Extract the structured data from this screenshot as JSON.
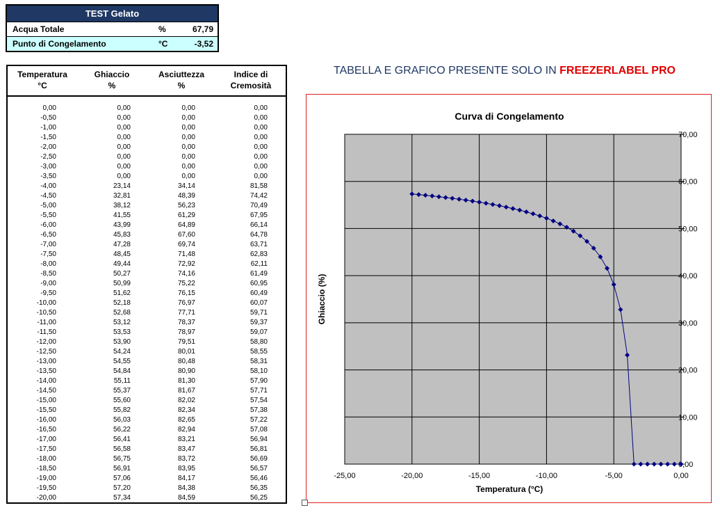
{
  "info": {
    "title": "TEST Gelato",
    "rows": [
      {
        "label": "Acqua Totale",
        "unit": "%",
        "value": "67,79"
      },
      {
        "label": "Punto di Congelamento",
        "unit": "°C",
        "value": "-3,52"
      }
    ]
  },
  "table": {
    "headers": [
      {
        "line1": "Temperatura",
        "line2": "°C"
      },
      {
        "line1": "Ghiaccio",
        "line2": "%"
      },
      {
        "line1": "Asciuttezza",
        "line2": "%"
      },
      {
        "line1": "Indice di",
        "line2": "Cremosità"
      }
    ],
    "rows": [
      [
        "0,00",
        "0,00",
        "0,00",
        "0,00"
      ],
      [
        "-0,50",
        "0,00",
        "0,00",
        "0,00"
      ],
      [
        "-1,00",
        "0,00",
        "0,00",
        "0,00"
      ],
      [
        "-1,50",
        "0,00",
        "0,00",
        "0,00"
      ],
      [
        "-2,00",
        "0,00",
        "0,00",
        "0,00"
      ],
      [
        "-2,50",
        "0,00",
        "0,00",
        "0,00"
      ],
      [
        "-3,00",
        "0,00",
        "0,00",
        "0,00"
      ],
      [
        "-3,50",
        "0,00",
        "0,00",
        "0,00"
      ],
      [
        "-4,00",
        "23,14",
        "34,14",
        "81,58"
      ],
      [
        "-4,50",
        "32,81",
        "48,39",
        "74,42"
      ],
      [
        "-5,00",
        "38,12",
        "56,23",
        "70,49"
      ],
      [
        "-5,50",
        "41,55",
        "61,29",
        "67,95"
      ],
      [
        "-6,00",
        "43,99",
        "64,89",
        "66,14"
      ],
      [
        "-6,50",
        "45,83",
        "67,60",
        "64,78"
      ],
      [
        "-7,00",
        "47,28",
        "69,74",
        "63,71"
      ],
      [
        "-7,50",
        "48,45",
        "71,48",
        "62,83"
      ],
      [
        "-8,00",
        "49,44",
        "72,92",
        "62,11"
      ],
      [
        "-8,50",
        "50,27",
        "74,16",
        "61,49"
      ],
      [
        "-9,00",
        "50,99",
        "75,22",
        "60,95"
      ],
      [
        "-9,50",
        "51,62",
        "76,15",
        "60,49"
      ],
      [
        "-10,00",
        "52,18",
        "76,97",
        "60,07"
      ],
      [
        "-10,50",
        "52,68",
        "77,71",
        "59,71"
      ],
      [
        "-11,00",
        "53,12",
        "78,37",
        "59,37"
      ],
      [
        "-11,50",
        "53,53",
        "78,97",
        "59,07"
      ],
      [
        "-12,00",
        "53,90",
        "79,51",
        "58,80"
      ],
      [
        "-12,50",
        "54,24",
        "80,01",
        "58,55"
      ],
      [
        "-13,00",
        "54,55",
        "80,48",
        "58,31"
      ],
      [
        "-13,50",
        "54,84",
        "80,90",
        "58,10"
      ],
      [
        "-14,00",
        "55,11",
        "81,30",
        "57,90"
      ],
      [
        "-14,50",
        "55,37",
        "81,67",
        "57,71"
      ],
      [
        "-15,00",
        "55,60",
        "82,02",
        "57,54"
      ],
      [
        "-15,50",
        "55,82",
        "82,34",
        "57,38"
      ],
      [
        "-16,00",
        "56,03",
        "82,65",
        "57,22"
      ],
      [
        "-16,50",
        "56,22",
        "82,94",
        "57,08"
      ],
      [
        "-17,00",
        "56,41",
        "83,21",
        "56,94"
      ],
      [
        "-17,50",
        "56,58",
        "83,47",
        "56,81"
      ],
      [
        "-18,00",
        "56,75",
        "83,72",
        "56,69"
      ],
      [
        "-18,50",
        "56,91",
        "83,95",
        "56,57"
      ],
      [
        "-19,00",
        "57,06",
        "84,17",
        "56,46"
      ],
      [
        "-19,50",
        "57,20",
        "84,38",
        "56,35"
      ],
      [
        "-20,00",
        "57,34",
        "84,59",
        "56,25"
      ]
    ]
  },
  "promo": {
    "prefix": "TABELLA E GRAFICO PRESENTE SOLO IN ",
    "brand": "FREEZERLABEL PRO"
  },
  "chart_data": {
    "type": "scatter",
    "title": "Curva di Congelamento",
    "xlabel": "Temperatura (°C)",
    "ylabel": "Ghiaccio (%)",
    "xlim": [
      -25,
      0
    ],
    "ylim": [
      0,
      70
    ],
    "x_ticks": [
      "-25,00",
      "-20,00",
      "-15,00",
      "-10,00",
      "-5,00",
      "0,00"
    ],
    "y_ticks": [
      "0,00",
      "10,00",
      "20,00",
      "30,00",
      "40,00",
      "50,00",
      "60,00",
      "70,00"
    ],
    "grid": true,
    "plot_background": "#c0c0c0",
    "series_color": "#000080",
    "x": [
      0,
      -0.5,
      -1,
      -1.5,
      -2,
      -2.5,
      -3,
      -3.5,
      -4,
      -4.5,
      -5,
      -5.5,
      -6,
      -6.5,
      -7,
      -7.5,
      -8,
      -8.5,
      -9,
      -9.5,
      -10,
      -10.5,
      -11,
      -11.5,
      -12,
      -12.5,
      -13,
      -13.5,
      -14,
      -14.5,
      -15,
      -15.5,
      -16,
      -16.5,
      -17,
      -17.5,
      -18,
      -18.5,
      -19,
      -19.5,
      -20
    ],
    "y": [
      0,
      0,
      0,
      0,
      0,
      0,
      0,
      0,
      23.14,
      32.81,
      38.12,
      41.55,
      43.99,
      45.83,
      47.28,
      48.45,
      49.44,
      50.27,
      50.99,
      51.62,
      52.18,
      52.68,
      53.12,
      53.53,
      53.9,
      54.24,
      54.55,
      54.84,
      55.11,
      55.37,
      55.6,
      55.82,
      56.03,
      56.22,
      56.41,
      56.58,
      56.75,
      56.91,
      57.06,
      57.2,
      57.34
    ]
  }
}
